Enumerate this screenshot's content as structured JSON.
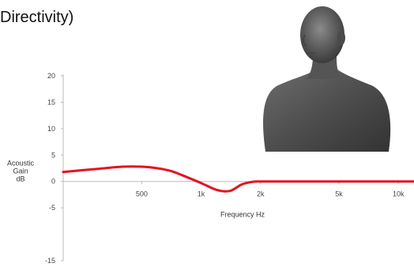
{
  "title": "Directivity)",
  "chart_data": {
    "type": "line",
    "title": "Directivity)",
    "xlabel": "Frequency Hz",
    "ylabel": "Acoustic Gain dB",
    "ylabel_lines": [
      "Acoustic",
      "Gain",
      "dB"
    ],
    "x_scale": "log",
    "xlim": [
      200,
      12000
    ],
    "ylim": [
      -15,
      20
    ],
    "yticks": [
      20,
      15,
      10,
      5,
      0,
      -5,
      -15
    ],
    "xticks": [
      {
        "value": 500,
        "label": "500"
      },
      {
        "value": 1000,
        "label": "1k"
      },
      {
        "value": 2000,
        "label": "2k"
      },
      {
        "value": 5000,
        "label": "5k"
      },
      {
        "value": 10000,
        "label": "10k"
      }
    ],
    "grid": false,
    "series": [
      {
        "color": "#e8101e",
        "x": [
          200,
          300,
          400,
          500,
          600,
          700,
          800,
          1000,
          1200,
          1400,
          1600,
          1800,
          2000,
          3000,
          5000,
          10000,
          12000
        ],
        "y": [
          1.8,
          2.4,
          2.8,
          2.8,
          2.5,
          2.0,
          1.2,
          -0.3,
          -1.6,
          -1.8,
          -0.6,
          -0.1,
          0,
          0,
          0,
          0,
          0
        ]
      }
    ]
  },
  "image": {
    "icon": "mannequin-bust-icon"
  }
}
